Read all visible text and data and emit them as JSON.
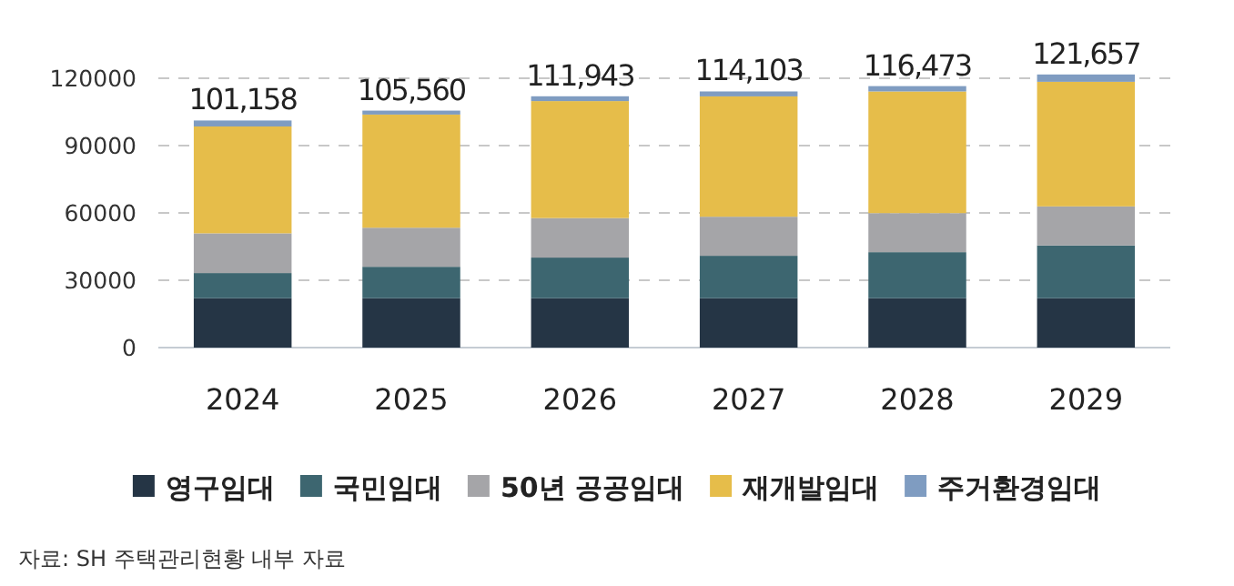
{
  "chart_data": {
    "type": "bar",
    "stacked": true,
    "categories": [
      "2024",
      "2025",
      "2026",
      "2027",
      "2028",
      "2029"
    ],
    "series": [
      {
        "name": "영구임대",
        "color": "#253545",
        "values": [
          22000,
          22000,
          22000,
          22000,
          22000,
          22000
        ]
      },
      {
        "name": "국민임대",
        "color": "#3d6670",
        "values": [
          11200,
          14000,
          18100,
          18900,
          20500,
          23500
        ]
      },
      {
        "name": "50년 공공임대",
        "color": "#a5a5a8",
        "values": [
          17700,
          17400,
          17600,
          17400,
          17400,
          17400
        ]
      },
      {
        "name": "재개발임대",
        "color": "#e6bd4a",
        "values": [
          47600,
          50400,
          52100,
          53600,
          54200,
          55500
        ]
      },
      {
        "name": "주거환경임대",
        "color": "#7f9cc1",
        "values": [
          2658,
          1760,
          2143,
          2203,
          2373,
          3257
        ]
      }
    ],
    "totals": [
      "101,158",
      "105,560",
      "111,943",
      "114,103",
      "116,473",
      "121,657"
    ],
    "ylim": [
      0,
      122000
    ],
    "yticks": [
      0,
      30000,
      60000,
      90000,
      120000
    ],
    "grid": "y",
    "legend": "bottom",
    "annotations": [
      "자료: SH 주택관리현황 내부 자료"
    ]
  }
}
